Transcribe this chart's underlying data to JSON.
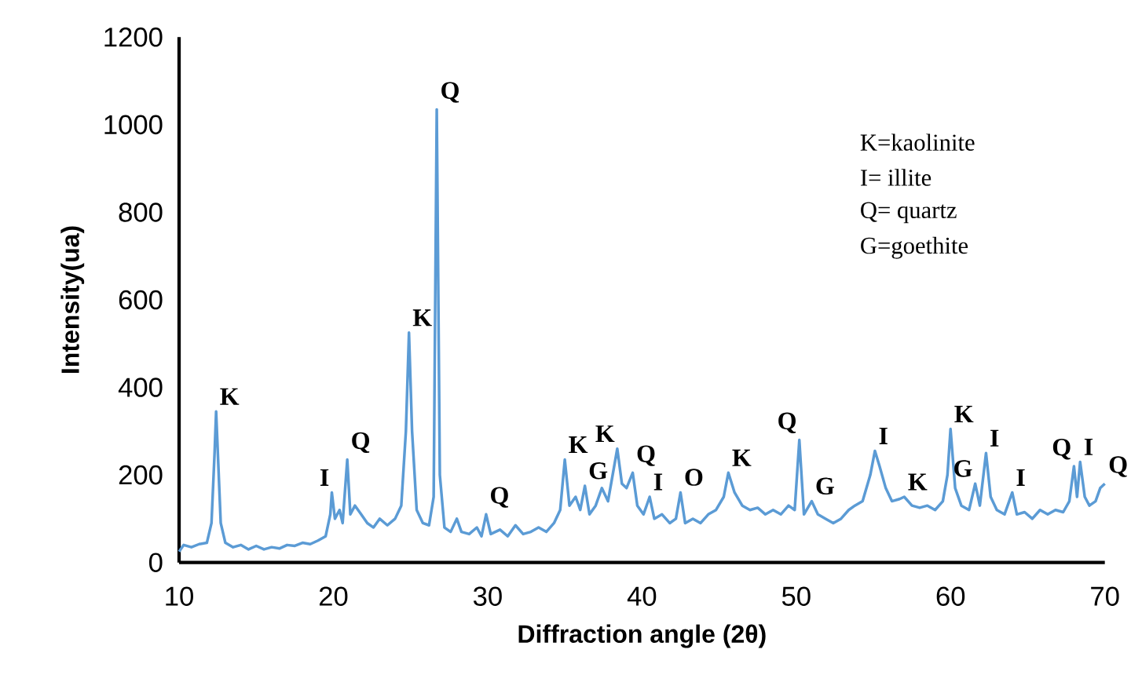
{
  "chart_data": {
    "type": "line",
    "xlabel": "Diffraction angle (2θ)",
    "ylabel": "Intensity(ua)",
    "xlim": [
      10,
      70
    ],
    "ylim": [
      0,
      1200
    ],
    "xticks": [
      10,
      20,
      30,
      40,
      50,
      60,
      70
    ],
    "yticks": [
      0,
      200,
      400,
      600,
      800,
      1000,
      1200
    ],
    "grid": false,
    "legend": false,
    "marker": "none",
    "line_style": "solid",
    "x": [
      10,
      10.3,
      10.8,
      11.3,
      11.8,
      12.1,
      12.3,
      12.4,
      12.5,
      12.7,
      13.0,
      13.5,
      14,
      14.5,
      15,
      15.5,
      16,
      16.5,
      17,
      17.5,
      18,
      18.5,
      19,
      19.5,
      19.8,
      19.9,
      20.1,
      20.4,
      20.6,
      20.9,
      21.1,
      21.4,
      21.8,
      22.2,
      22.6,
      23,
      23.5,
      24,
      24.4,
      24.7,
      24.9,
      25.1,
      25.4,
      25.8,
      26.2,
      26.5,
      26.7,
      26.9,
      27.2,
      27.6,
      28,
      28.3,
      28.8,
      29.3,
      29.6,
      29.9,
      30.2,
      30.8,
      31.3,
      31.8,
      32.3,
      32.8,
      33.3,
      33.8,
      34.3,
      34.7,
      35,
      35.3,
      35.7,
      36,
      36.3,
      36.6,
      37,
      37.4,
      37.8,
      38.1,
      38.4,
      38.7,
      39.0,
      39.4,
      39.7,
      40.1,
      40.5,
      40.8,
      41.3,
      41.8,
      42.2,
      42.5,
      42.8,
      43.3,
      43.8,
      44.3,
      44.8,
      45.3,
      45.6,
      46,
      46.5,
      47,
      47.5,
      48,
      48.5,
      49,
      49.5,
      49.9,
      50.2,
      50.5,
      51,
      51.4,
      51.9,
      52.4,
      52.9,
      53.4,
      53.8,
      54.3,
      54.8,
      55.1,
      55.4,
      55.8,
      56.2,
      56.7,
      57.0,
      57.5,
      58,
      58.5,
      59,
      59.5,
      59.8,
      60.0,
      60.3,
      60.7,
      61.2,
      61.6,
      61.9,
      62.3,
      62.6,
      63,
      63.5,
      64,
      64.3,
      64.8,
      65.3,
      65.8,
      66.3,
      66.8,
      67.3,
      67.7,
      68.0,
      68.2,
      68.4,
      68.7,
      69,
      69.4,
      69.7,
      70
    ],
    "series": [
      {
        "color": "#5b9bd5",
        "values": [
          25,
          40,
          35,
          42,
          45,
          90,
          250,
          345,
          260,
          90,
          45,
          35,
          40,
          30,
          38,
          30,
          35,
          32,
          40,
          38,
          45,
          42,
          50,
          60,
          110,
          160,
          100,
          120,
          90,
          235,
          110,
          130,
          110,
          90,
          80,
          100,
          85,
          100,
          130,
          300,
          525,
          300,
          120,
          90,
          85,
          150,
          1035,
          200,
          80,
          70,
          100,
          70,
          65,
          80,
          60,
          110,
          65,
          75,
          60,
          85,
          65,
          70,
          80,
          70,
          90,
          120,
          235,
          130,
          150,
          120,
          175,
          110,
          130,
          170,
          140,
          200,
          260,
          180,
          170,
          205,
          130,
          110,
          150,
          100,
          110,
          90,
          100,
          160,
          90,
          100,
          90,
          110,
          120,
          150,
          205,
          160,
          130,
          120,
          125,
          110,
          120,
          110,
          130,
          120,
          280,
          110,
          140,
          110,
          100,
          90,
          100,
          120,
          130,
          140,
          200,
          255,
          220,
          170,
          140,
          145,
          150,
          130,
          125,
          130,
          120,
          140,
          200,
          305,
          170,
          130,
          120,
          180,
          130,
          250,
          150,
          120,
          110,
          160,
          110,
          115,
          100,
          120,
          110,
          120,
          115,
          140,
          220,
          150,
          230,
          150,
          130,
          140,
          170,
          180
        ]
      }
    ],
    "annotations": [
      {
        "text": "K",
        "x": 12.4,
        "y": 345
      },
      {
        "text": "I",
        "x": 19.9,
        "y": 160
      },
      {
        "text": "Q",
        "x": 20.9,
        "y": 235
      },
      {
        "text": "K",
        "x": 24.9,
        "y": 525
      },
      {
        "text": "Q",
        "x": 26.7,
        "y": 1035
      },
      {
        "text": "Q",
        "x": 29.9,
        "y": 110
      },
      {
        "text": "K",
        "x": 35,
        "y": 235
      },
      {
        "text": "G",
        "x": 36.3,
        "y": 175
      },
      {
        "text": "K",
        "x": 38.4,
        "y": 260
      },
      {
        "text": "Q",
        "x": 39.4,
        "y": 205
      },
      {
        "text": "I",
        "x": 40.5,
        "y": 150
      },
      {
        "text": "O",
        "x": 42.5,
        "y": 160
      },
      {
        "text": "K",
        "x": 45.6,
        "y": 205
      },
      {
        "text": "Q",
        "x": 50.2,
        "y": 280
      },
      {
        "text": "G",
        "x": 51,
        "y": 140
      },
      {
        "text": "I",
        "x": 55.1,
        "y": 255
      },
      {
        "text": "K",
        "x": 57.0,
        "y": 150
      },
      {
        "text": "K",
        "x": 60.0,
        "y": 305
      },
      {
        "text": "G",
        "x": 61.6,
        "y": 180
      },
      {
        "text": "I",
        "x": 62.3,
        "y": 250
      },
      {
        "text": "I",
        "x": 64,
        "y": 160
      },
      {
        "text": "Q",
        "x": 68.0,
        "y": 220
      },
      {
        "text": "I",
        "x": 68.4,
        "y": 230
      },
      {
        "text": "Q",
        "x": 70,
        "y": 180
      },
      "K=kaolinite",
      "I= illite",
      "Q= quartz",
      "G=goethite"
    ]
  }
}
